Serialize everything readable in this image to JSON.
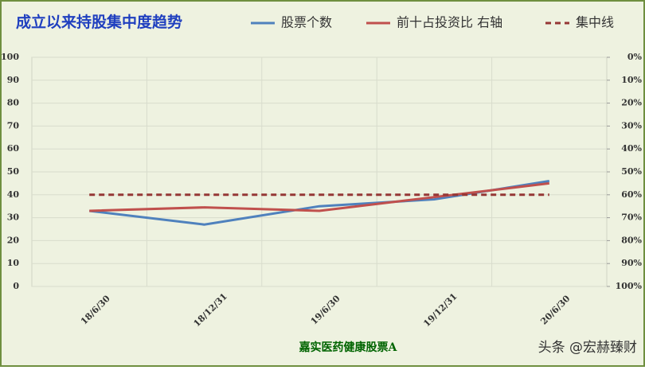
{
  "chart_data": {
    "type": "line",
    "title": "成立以来持股集中度趋势",
    "x_label": "嘉实医药健康股票A",
    "watermark": "头条 @宏赫臻财",
    "categories": [
      "18/6/30",
      "18/12/31",
      "19/6/30",
      "19/12/31",
      "20/6/30"
    ],
    "series": [
      {
        "name": "股票个数",
        "color": "#4f81bd",
        "values": [
          33,
          27,
          35,
          38,
          46
        ]
      },
      {
        "name": "前十占投资比 右轴",
        "color": "#c0504d",
        "axis": "y2",
        "values": [
          67,
          65.5,
          67,
          61,
          55
        ]
      },
      {
        "name": "集中线",
        "color": "#953735",
        "axis": "y2",
        "dashed": true,
        "values": [
          60,
          60,
          60,
          60,
          60
        ]
      }
    ],
    "ylim": [
      0,
      100
    ],
    "yticks": [
      0,
      10,
      20,
      30,
      40,
      50,
      60,
      70,
      80,
      90,
      100
    ],
    "y2lim": [
      100,
      0
    ],
    "y2ticks": [
      {
        "value": 0,
        "label": "0%"
      },
      {
        "value": 10,
        "label": "10%"
      },
      {
        "value": 20,
        "label": "20%"
      },
      {
        "value": 30,
        "label": "30%"
      },
      {
        "value": 40,
        "label": "40%"
      },
      {
        "value": 50,
        "label": "50%"
      },
      {
        "value": 60,
        "label": "60%"
      },
      {
        "value": 70,
        "label": "70%"
      },
      {
        "value": 80,
        "label": "80%"
      },
      {
        "value": 90,
        "label": "90%"
      },
      {
        "value": 100,
        "label": "100%"
      }
    ],
    "grid": true
  }
}
